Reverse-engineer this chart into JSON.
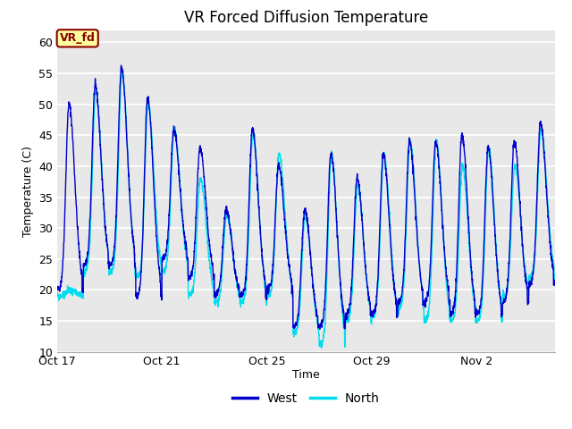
{
  "title": "VR Forced Diffusion Temperature",
  "xlabel": "Time",
  "ylabel": "Temperature (C)",
  "ylim": [
    10,
    62
  ],
  "yticks": [
    10,
    15,
    20,
    25,
    30,
    35,
    40,
    45,
    50,
    55,
    60
  ],
  "xtick_labels": [
    "Oct 17",
    "Oct 21",
    "Oct 25",
    "Oct 29",
    "Nov 2"
  ],
  "xtick_positions": [
    0,
    4,
    8,
    12,
    16
  ],
  "legend_labels": [
    "West",
    "North"
  ],
  "west_color": "#0000CC",
  "north_color": "#00DDEE",
  "bg_color": "#E8E8E8",
  "annotation_text": "VR_fd",
  "annotation_bg": "#FFFFA0",
  "annotation_border": "#8B0000",
  "annotation_text_color": "#8B0000",
  "num_days": 19,
  "grid_color": "#FFFFFF",
  "title_fontsize": 12,
  "axis_fontsize": 9,
  "tick_fontsize": 9,
  "day_peaks_west": [
    50,
    53,
    56,
    51,
    46,
    43,
    33,
    46,
    40,
    33,
    42,
    38,
    42,
    44,
    44,
    45,
    43,
    44,
    47
  ],
  "day_mins_west": [
    20,
    24,
    24,
    19,
    25,
    22,
    19,
    19,
    20,
    14,
    14,
    16,
    16,
    18,
    18,
    16,
    16,
    18,
    21
  ],
  "day_peaks_north": [
    20,
    52,
    55,
    50,
    46,
    38,
    32,
    45,
    42,
    32,
    42,
    37,
    42,
    44,
    44,
    40,
    43,
    40,
    46
  ],
  "day_mins_north": [
    19,
    23,
    23,
    22,
    23,
    19,
    18,
    18,
    19,
    13,
    11,
    15,
    16,
    17,
    15,
    15,
    15,
    19,
    22
  ]
}
